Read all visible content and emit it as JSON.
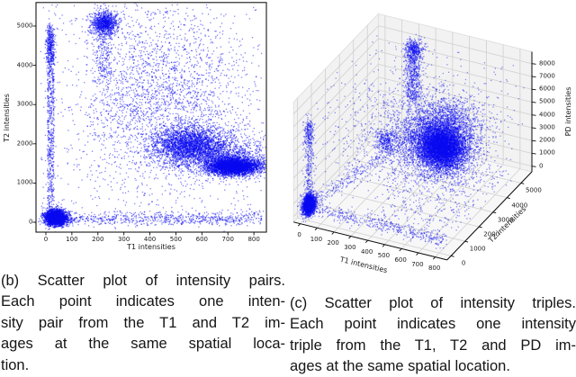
{
  "captions": {
    "b": {
      "lines": [
        "(b) Scatter plot of intensity pairs.",
        "Each point indicates one inten-",
        "sity pair from the T1 and T2 im-",
        "ages at the same spatial loca-",
        "tion."
      ]
    },
    "c": {
      "lines": [
        "(c) Scatter plot of intensity triples.",
        "Each point indicates one intensity",
        "triple from the T1, T2 and PD im-",
        "ages at the same spatial location."
      ]
    }
  },
  "chart_data": [
    {
      "type": "scatter",
      "panel": "b",
      "title": "",
      "xlabel": "T1 intensities",
      "ylabel": "T2 intensities",
      "xlim": [
        -38,
        848
      ],
      "ylim": [
        -252,
        5600
      ],
      "xticks": [
        0,
        100,
        200,
        300,
        400,
        500,
        600,
        700,
        800
      ],
      "yticks": [
        0,
        1000,
        2000,
        3000,
        4000,
        5000
      ],
      "grid": false,
      "marker_color": "#0a0af2",
      "marker_alpha": 0.5,
      "clusters": [
        {
          "name": "origin-blob",
          "n": 2800,
          "x": {
            "g": [
              38,
              21
            ]
          },
          "y": {
            "g": [
              115,
              100
            ]
          }
        },
        {
          "name": "left-vertical-stripe",
          "n": 650,
          "x": {
            "u": [
              6,
              32
            ]
          },
          "y": {
            "u": [
              150,
              4950
            ]
          }
        },
        {
          "name": "left-stripe-dense",
          "n": 320,
          "x": {
            "g": [
              16,
              9
            ]
          },
          "y": {
            "g": [
              4420,
              300
            ]
          }
        },
        {
          "name": "top-cluster",
          "n": 950,
          "x": {
            "g": [
              225,
              26
            ]
          },
          "y": {
            "g": [
              5070,
              140
            ]
          }
        },
        {
          "name": "top-cluster-tail",
          "n": 280,
          "x": {
            "g": [
              222,
              20
            ]
          },
          "y": {
            "g": [
              4400,
              550
            ]
          }
        },
        {
          "name": "diffuse-cloud",
          "n": 2200,
          "x": {
            "g": [
              450,
              155
            ]
          },
          "y": {
            "g": [
              3150,
              1150
            ]
          }
        },
        {
          "name": "mid-dense-cluster",
          "n": 2400,
          "x": {
            "g": [
              548,
              68
            ]
          },
          "y": {
            "g": [
              1980,
              240
            ]
          }
        },
        {
          "name": "right-dense-blob",
          "n": 4200,
          "x": {
            "g": [
              722,
              50
            ]
          },
          "y": {
            "g": [
              1420,
              110
            ]
          }
        },
        {
          "name": "bridge-cluster",
          "n": 1400,
          "x": {
            "g": [
              660,
              95
            ]
          },
          "y": {
            "g": [
              1750,
              260
            ]
          }
        },
        {
          "name": "bottom-stripe",
          "n": 700,
          "x": {
            "u": [
              40,
              830
            ]
          },
          "y": {
            "g": [
              90,
              80
            ]
          }
        },
        {
          "name": "background-sparse",
          "n": 700,
          "x": {
            "u": [
              -20,
              840
            ]
          },
          "y": {
            "u": [
              -60,
              5560
            ]
          }
        }
      ]
    },
    {
      "type": "scatter3d",
      "panel": "c",
      "title": "",
      "xlabel": "T1 intensities",
      "ylabel": "T2 intensities",
      "zlabel": "PD intensities",
      "xlim": [
        -40,
        870
      ],
      "ylim": [
        -280,
        5780
      ],
      "zlim": [
        -430,
        8930
      ],
      "xticks": [
        0,
        100,
        200,
        300,
        400,
        500,
        600,
        700,
        800
      ],
      "yticks": [
        0,
        1000,
        2000,
        3000,
        4000,
        5000
      ],
      "zticks": [
        0,
        1000,
        2000,
        3000,
        4000,
        5000,
        6000,
        7000,
        8000
      ],
      "grid": true,
      "pane_color": "#f2f2f2",
      "grid_color": "#cfcfcf",
      "marker_color": "#0a0af2",
      "marker_alpha": 0.45,
      "clusters": [
        {
          "name": "origin-blob",
          "n": 2300,
          "t1": {
            "g": [
              15,
              14
            ]
          },
          "t2": {
            "g": [
              150,
              140
            ]
          },
          "pd": {
            "g": [
              600,
              350
            ]
          }
        },
        {
          "name": "origin-column-knot",
          "n": 130,
          "t1": {
            "g": [
              15,
              10
            ]
          },
          "t2": {
            "g": [
              150,
              130
            ]
          },
          "pd": {
            "g": [
              6300,
              600
            ]
          }
        },
        {
          "name": "origin-pd-column",
          "n": 300,
          "t1": {
            "g": [
              15,
              10
            ]
          },
          "t2": {
            "g": [
              150,
              120
            ]
          },
          "pd": {
            "u": [
              800,
              7000
            ]
          }
        },
        {
          "name": "diagonal-trail",
          "n": 330,
          "lerp": {
            "from": [
              15,
              150,
              500
            ],
            "to": [
              560,
              1200,
              6800
            ],
            "sigma": [
              18,
              90,
              250
            ]
          }
        },
        {
          "name": "trail-knot",
          "n": 220,
          "t1": {
            "g": [
              380,
              25
            ]
          },
          "t2": {
            "g": [
              1150,
              120
            ]
          },
          "pd": {
            "g": [
              5700,
              300
            ]
          }
        },
        {
          "name": "t1-axis-trail",
          "n": 450,
          "t1": {
            "u": [
              25,
              820
            ]
          },
          "t2": {
            "g": [
              210,
              110
            ]
          },
          "pd": {
            "g": [
              350,
              230
            ]
          }
        },
        {
          "name": "main-blob",
          "n": 6000,
          "t1": {
            "g": [
              690,
              62
            ]
          },
          "t2": {
            "g": [
              1480,
              270
            ]
          },
          "pd": {
            "g": [
              5800,
              750
            ]
          }
        },
        {
          "name": "surrounding-cloud",
          "n": 3000,
          "t1": {
            "g": [
              600,
              150
            ]
          },
          "t2": {
            "g": [
              2200,
              850
            ]
          },
          "pd": {
            "g": [
              5200,
              1250
            ]
          }
        },
        {
          "name": "above-blob-spread",
          "n": 700,
          "t1": {
            "g": [
              680,
              90
            ]
          },
          "t2": {
            "g": [
              1800,
              500
            ]
          },
          "pd": {
            "g": [
              7400,
              700
            ]
          }
        },
        {
          "name": "top-column",
          "n": 650,
          "t1": {
            "g": [
              228,
              22
            ]
          },
          "t2": {
            "g": [
              5060,
              180
            ]
          },
          "pd": {
            "u": [
              3800,
              8200
            ]
          }
        },
        {
          "name": "top-column-cap",
          "n": 260,
          "t1": {
            "g": [
              228,
              24
            ]
          },
          "t2": {
            "g": [
              5060,
              170
            ]
          },
          "pd": {
            "g": [
              7900,
              350
            ]
          }
        },
        {
          "name": "floor-scatter",
          "n": 280,
          "t1": {
            "u": [
              350,
              820
            ]
          },
          "t2": {
            "u": [
              500,
              5200
            ]
          },
          "pd": {
            "g": [
              250,
              220
            ]
          }
        },
        {
          "name": "background-sparse",
          "n": 850,
          "t1": {
            "u": [
              -10,
              850
            ]
          },
          "t2": {
            "u": [
              0,
              5600
            ]
          },
          "pd": {
            "u": [
              0,
              8700
            ]
          }
        }
      ]
    }
  ]
}
